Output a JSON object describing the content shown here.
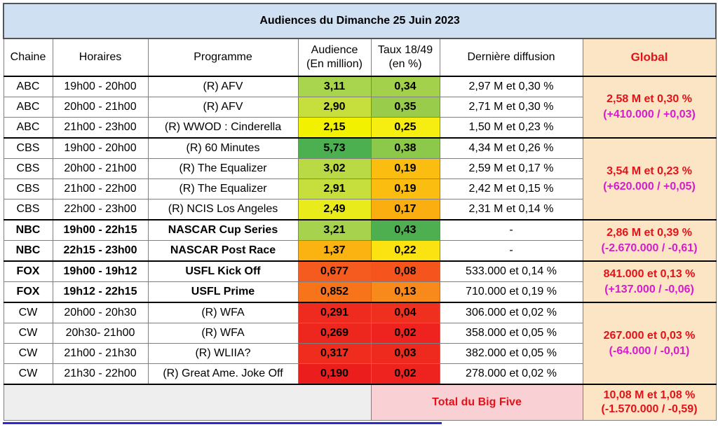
{
  "title": "Audiences du Dimanche 25 Juin 2023",
  "headers": {
    "chaine": "Chaine",
    "horaires": "Horaires",
    "programme": "Programme",
    "audience_l1": "Audience",
    "audience_l2": "(En million)",
    "taux_l1": "Taux 18/49",
    "taux_l2": "(en %)",
    "derniere": "Dernière diffusion",
    "global": "Global"
  },
  "rows": [
    {
      "chaine": "ABC",
      "horaires": "19h00 - 20h00",
      "programme": "(R) AFV",
      "audience": "3,11",
      "taux": "0,34",
      "derniere": "2,97 M et 0,30 %",
      "aud_color": "#a9d44d",
      "taux_color": "#a4d14c"
    },
    {
      "chaine": "ABC",
      "horaires": "20h00 - 21h00",
      "programme": "(R) AFV",
      "audience": "2,90",
      "taux": "0,35",
      "derniere": "2,71 M et 0,30 %",
      "aud_color": "#c6df3c",
      "taux_color": "#98cc4a"
    },
    {
      "chaine": "ABC",
      "horaires": "21h00 - 23h00",
      "programme": "(R) WWOD : Cinderella",
      "audience": "2,15",
      "taux": "0,25",
      "derniere": "1,50 M et 0,23 %",
      "aud_color": "#f2f100",
      "taux_color": "#f7ee11"
    },
    {
      "chaine": "CBS",
      "horaires": "19h00 - 20h00",
      "programme": "(R) 60 Minutes",
      "audience": "5,73",
      "taux": "0,38",
      "derniere": "4,34 M et 0,26 %",
      "aud_color": "#4caf50",
      "taux_color": "#8cc84a"
    },
    {
      "chaine": "CBS",
      "horaires": "20h00 - 21h00",
      "programme": "(R) The Equalizer",
      "audience": "3,02",
      "taux": "0,19",
      "derniere": "2,59 M et 0,17 %",
      "aud_color": "#b9da45",
      "taux_color": "#fbbe10"
    },
    {
      "chaine": "CBS",
      "horaires": "21h00 - 22h00",
      "programme": "(R) The Equalizer",
      "audience": "2,91",
      "taux": "0,19",
      "derniere": "2,42 M et 0,15 %",
      "aud_color": "#c6df3c",
      "taux_color": "#fbbe10"
    },
    {
      "chaine": "CBS",
      "horaires": "22h00 - 23h00",
      "programme": "(R) NCIS Los Angeles",
      "audience": "2,49",
      "taux": "0,17",
      "derniere": "2,31 M et 0,14 %",
      "aud_color": "#e9ec1a",
      "taux_color": "#fbae10"
    },
    {
      "chaine": "NBC",
      "horaires": "19h00 - 22h15",
      "programme": "NASCAR Cup Series",
      "audience": "3,21",
      "taux": "0,43",
      "derniere": "-",
      "aud_color": "#a6d24e",
      "taux_color": "#4daf4f"
    },
    {
      "chaine": "NBC",
      "horaires": "22h15 - 23h00",
      "programme": "NASCAR Post Race",
      "audience": "1,37",
      "taux": "0,22",
      "derniere": "-",
      "aud_color": "#fbb311",
      "taux_color": "#fbe311"
    },
    {
      "chaine": "FOX",
      "horaires": "19h00 - 19h12",
      "programme": "USFL Kick Off",
      "audience": "0,677",
      "taux": "0,08",
      "derniere": "533.000 et 0,14 %",
      "aud_color": "#f55a1e",
      "taux_color": "#f5551d"
    },
    {
      "chaine": "FOX",
      "horaires": "19h12 - 22h15",
      "programme": "USFL Prime",
      "audience": "0,852",
      "taux": "0,13",
      "derniere": "710.000 et 0,19 %",
      "aud_color": "#f7741b",
      "taux_color": "#f78a1a"
    },
    {
      "chaine": "CW",
      "horaires": "20h00 - 20h30",
      "programme": "(R) WFA",
      "audience": "0,291",
      "taux": "0,04",
      "derniere": "306.000 et 0,02 %",
      "aud_color": "#ef2a1e",
      "taux_color": "#f0301e"
    },
    {
      "chaine": "CW",
      "horaires": "20h30- 21h00",
      "programme": "(R) WFA",
      "audience": "0,269",
      "taux": "0,02",
      "derniere": "358.000 et 0,05 %",
      "aud_color": "#ee271e",
      "taux_color": "#ee221e"
    },
    {
      "chaine": "CW",
      "horaires": "21h00 - 21h30",
      "programme": "(R) WLIIA?",
      "audience": "0,317",
      "taux": "0,03",
      "derniere": "382.000 et 0,05 %",
      "aud_color": "#ef2c1e",
      "taux_color": "#ee291e"
    },
    {
      "chaine": "CW",
      "horaires": "21h30 - 22h00",
      "programme": "(R) Great Ame. Joke Off",
      "audience": "0,190",
      "taux": "0,02",
      "derniere": "278.000 et 0,02 %",
      "aud_color": "#ec1d1d",
      "taux_color": "#ee221e"
    }
  ],
  "globals": {
    "abc": {
      "main": "2,58 M et 0,30 %",
      "sub": "(+410.000 / +0,03)"
    },
    "cbs": {
      "main": "3,54 M et 0,23 %",
      "sub": "(+620.000 / +0,05)"
    },
    "nbc": {
      "main": "2,86 M et 0,39 %",
      "sub": "(-2.670.000 / -0,61)"
    },
    "fox": {
      "main": "841.000 et 0,13 %",
      "sub": "(+137.000 / -0,06)"
    },
    "cw": {
      "main": "267.000 et 0,03 %",
      "sub": "(-64.000 / -0,01)"
    }
  },
  "total": {
    "label": "Total du Big Five",
    "main": "10,08 M et 1,08 %",
    "sub": "(-1.570.000 / -0,59)"
  }
}
